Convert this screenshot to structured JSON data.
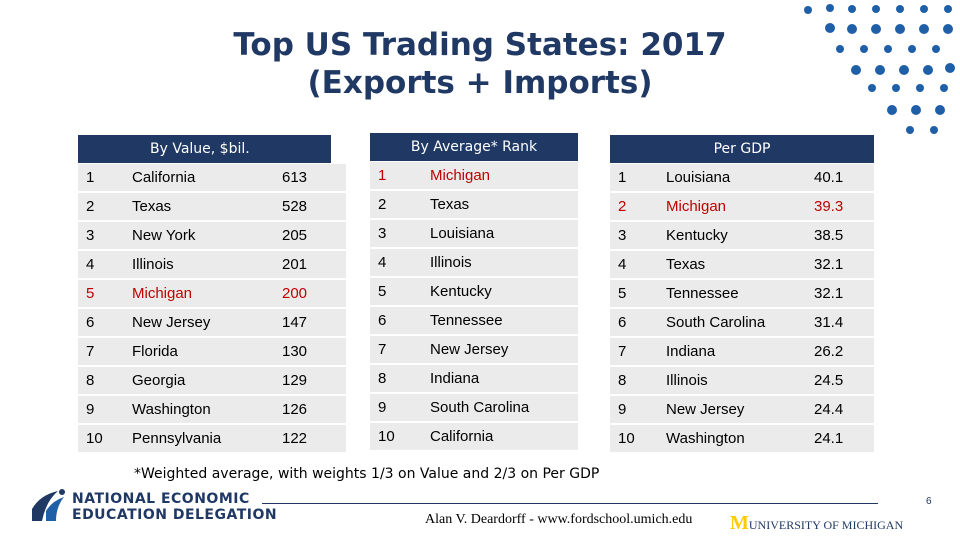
{
  "title": {
    "line1": "Top US Trading States: 2017",
    "line2": "(Exports + Imports)"
  },
  "headers": {
    "value": "By Value, $bil.",
    "rank": "By Average* Rank",
    "gdp": "Per GDP"
  },
  "value_rows": [
    {
      "n": "1",
      "state": "California",
      "val": "613",
      "hl": false
    },
    {
      "n": "2",
      "state": "Texas",
      "val": "528",
      "hl": false
    },
    {
      "n": "3",
      "state": "New York",
      "val": "205",
      "hl": false
    },
    {
      "n": "4",
      "state": "Illinois",
      "val": "201",
      "hl": false
    },
    {
      "n": "5",
      "state": "Michigan",
      "val": "200",
      "hl": true
    },
    {
      "n": "6",
      "state": "New Jersey",
      "val": "147",
      "hl": false
    },
    {
      "n": "7",
      "state": "Florida",
      "val": "130",
      "hl": false
    },
    {
      "n": "8",
      "state": "Georgia",
      "val": "129",
      "hl": false
    },
    {
      "n": "9",
      "state": "Washington",
      "val": "126",
      "hl": false
    },
    {
      "n": "10",
      "state": "Pennsylvania",
      "val": "122",
      "hl": false
    }
  ],
  "rank_rows": [
    {
      "n": "1",
      "state": "Michigan",
      "hl": true
    },
    {
      "n": "2",
      "state": "Texas",
      "hl": false
    },
    {
      "n": "3",
      "state": "Louisiana",
      "hl": false
    },
    {
      "n": "4",
      "state": "Illinois",
      "hl": false
    },
    {
      "n": "5",
      "state": "Kentucky",
      "hl": false
    },
    {
      "n": "6",
      "state": "Tennessee",
      "hl": false
    },
    {
      "n": "7",
      "state": "New Jersey",
      "hl": false
    },
    {
      "n": "8",
      "state": "Indiana",
      "hl": false
    },
    {
      "n": "9",
      "state": "South Carolina",
      "hl": false
    },
    {
      "n": "10",
      "state": "California",
      "hl": false
    }
  ],
  "gdp_rows": [
    {
      "n": "1",
      "state": "Louisiana",
      "val": "40.1",
      "hl": false
    },
    {
      "n": "2",
      "state": "Michigan",
      "val": "39.3",
      "hl": true
    },
    {
      "n": "3",
      "state": "Kentucky",
      "val": "38.5",
      "hl": false
    },
    {
      "n": "4",
      "state": "Texas",
      "val": "32.1",
      "hl": false
    },
    {
      "n": "5",
      "state": "Tennessee",
      "val": "32.1",
      "hl": false
    },
    {
      "n": "6",
      "state": "South Carolina",
      "val": "31.4",
      "hl": false
    },
    {
      "n": "7",
      "state": "Indiana",
      "val": "26.2",
      "hl": false
    },
    {
      "n": "8",
      "state": "Illinois",
      "val": "24.5",
      "hl": false
    },
    {
      "n": "9",
      "state": "New Jersey",
      "val": "24.4",
      "hl": false
    },
    {
      "n": "10",
      "state": "Washington",
      "val": "24.1",
      "hl": false
    }
  ],
  "footnote": "*Weighted average, with weights 1/3 on Value and 2/3 on Per GDP",
  "footer": {
    "org_line1": "NATIONAL ECONOMIC",
    "org_line2": "EDUCATION DELEGATION",
    "page": "6",
    "credit": "Alan V. Deardorff - www.fordschool.umich.edu",
    "um_letter": "M",
    "um_text": "UNIVERSITY OF MICHIGAN"
  },
  "colors": {
    "navy": "#1f3864",
    "highlight": "#c00000",
    "row_bg": "#ebebeb",
    "dots": "#1f5fa8"
  }
}
